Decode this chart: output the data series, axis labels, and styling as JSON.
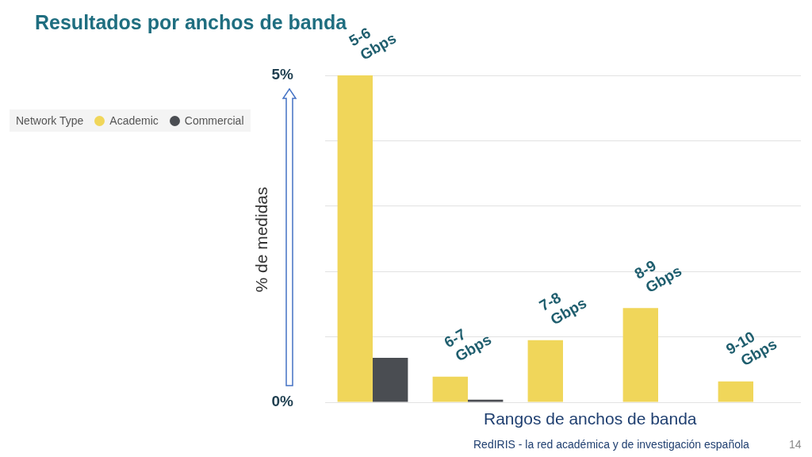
{
  "chart_data": {
    "type": "bar",
    "title": "Resultados por anchos de banda",
    "xlabel": "Rangos de anchos de banda",
    "ylabel": "% de medidas",
    "legend_title": "Network Type",
    "legend": "left",
    "categories": [
      "5-6 Gbps",
      "6-7 Gbps",
      "7-8 Gbps",
      "8-9 Gbps",
      "9-10 Gbps"
    ],
    "series": [
      {
        "name": "Academic",
        "color": "#f0d65a",
        "values": [
          5.0,
          0.39,
          0.95,
          1.44,
          0.32
        ]
      },
      {
        "name": "Commercial",
        "color": "#4a4d52",
        "values": [
          0.68,
          0.04,
          0,
          0,
          0
        ]
      }
    ],
    "ylim": [
      0,
      5
    ],
    "yticks": [
      {
        "value": 0,
        "label": "0%"
      },
      {
        "value": 1,
        "label": null
      },
      {
        "value": 2,
        "label": null
      },
      {
        "value": 3,
        "label": null
      },
      {
        "value": 4,
        "label": null
      },
      {
        "value": 5,
        "label": "5%"
      }
    ],
    "grid": "y",
    "annotations": [
      "RedIRIS - la red académica y de investigación española",
      "14"
    ]
  }
}
